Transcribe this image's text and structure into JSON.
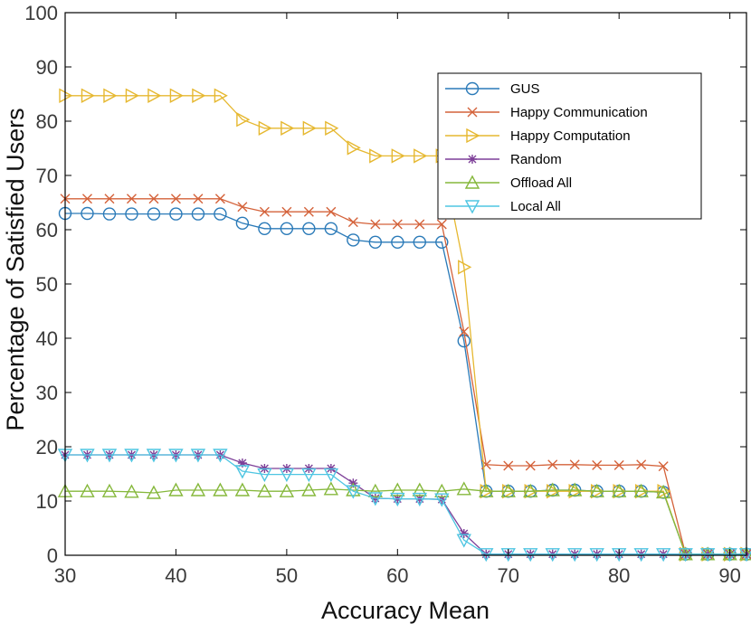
{
  "chart_data": {
    "type": "line",
    "title": "",
    "xlabel": "Accuracy Mean",
    "ylabel": "Percentage  of Satisfied Users",
    "xlim": [
      30,
      91.5
    ],
    "ylim": [
      0,
      100
    ],
    "xticks": [
      30,
      40,
      50,
      60,
      70,
      80,
      90
    ],
    "yticks": [
      0,
      10,
      20,
      30,
      40,
      50,
      60,
      70,
      80,
      90,
      100
    ],
    "legend_position": "top-right",
    "grid": false,
    "x": [
      30,
      32,
      34,
      36,
      38,
      40,
      42,
      44,
      46,
      48,
      50,
      52,
      54,
      56,
      58,
      60,
      62,
      64,
      66,
      68,
      70,
      72,
      74,
      76,
      78,
      80,
      82,
      84,
      86,
      88,
      90,
      91.5
    ],
    "series": [
      {
        "name": "GUS",
        "color": "#2a7ab8",
        "marker": "circle",
        "values": [
          63,
          63,
          62.9,
          62.9,
          62.9,
          62.9,
          62.9,
          62.9,
          61.2,
          60.2,
          60.2,
          60.2,
          60.2,
          58.1,
          57.7,
          57.7,
          57.7,
          57.7,
          39.5,
          11.8,
          11.8,
          11.8,
          12,
          12,
          11.8,
          11.8,
          11.8,
          11.6,
          0.2,
          0.2,
          0.2,
          0.2
        ]
      },
      {
        "name": "Happy Communication",
        "color": "#d4623a",
        "marker": "x",
        "values": [
          65.7,
          65.7,
          65.7,
          65.7,
          65.7,
          65.7,
          65.7,
          65.7,
          64.2,
          63.3,
          63.3,
          63.3,
          63.3,
          61.4,
          61,
          61,
          61,
          61,
          41.2,
          16.7,
          16.5,
          16.5,
          16.7,
          16.7,
          16.6,
          16.6,
          16.7,
          16.4,
          0.2,
          0.2,
          0.2,
          0.2
        ]
      },
      {
        "name": "Happy Computation",
        "color": "#e6b830",
        "marker": "triangle-right",
        "values": [
          84.7,
          84.7,
          84.7,
          84.7,
          84.7,
          84.7,
          84.7,
          84.7,
          80.3,
          78.7,
          78.7,
          78.7,
          78.7,
          75.1,
          73.6,
          73.6,
          73.6,
          73.6,
          53.1,
          11.8,
          11.8,
          11.8,
          11.8,
          11.8,
          11.8,
          11.8,
          11.8,
          11.8,
          0.2,
          0.2,
          0.2,
          0.2
        ]
      },
      {
        "name": "Random",
        "color": "#7d3f98",
        "marker": "asterisk",
        "values": [
          18.5,
          18.5,
          18.5,
          18.5,
          18.5,
          18.5,
          18.5,
          18.5,
          17,
          16,
          16,
          16,
          16,
          13.3,
          10.5,
          10.4,
          10.4,
          10.3,
          4,
          0.2,
          0.2,
          0.2,
          0.2,
          0.2,
          0.2,
          0.2,
          0.2,
          0.2,
          0.2,
          0.2,
          0.2,
          0.2
        ]
      },
      {
        "name": "Offload All",
        "color": "#86b83c",
        "marker": "triangle-up",
        "values": [
          11.8,
          11.8,
          11.8,
          11.7,
          11.5,
          12,
          12,
          12,
          12,
          11.8,
          11.8,
          12,
          12.2,
          12,
          11.8,
          12,
          12,
          11.8,
          12.2,
          11.8,
          11.8,
          11.8,
          12,
          12,
          11.8,
          11.8,
          11.8,
          11.6,
          0.2,
          0.2,
          0.2,
          0.2
        ]
      },
      {
        "name": "Local All",
        "color": "#4ec5e2",
        "marker": "triangle-down",
        "values": [
          18.5,
          18.5,
          18.5,
          18.5,
          18.5,
          18.5,
          18.5,
          18.5,
          15.5,
          14.9,
          14.9,
          14.9,
          14.9,
          11.8,
          10.5,
          10.4,
          10.4,
          10.3,
          2.8,
          0.2,
          0.2,
          0.2,
          0.2,
          0.2,
          0.2,
          0.2,
          0.2,
          0.2,
          0.2,
          0.2,
          0.2,
          0.2
        ]
      }
    ]
  }
}
